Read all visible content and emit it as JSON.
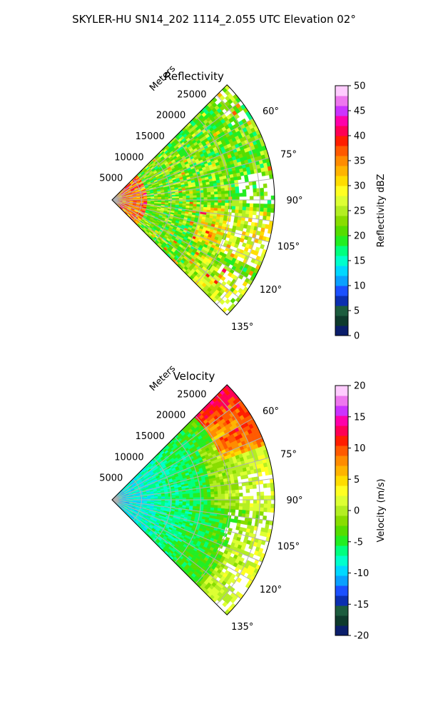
{
  "figure": {
    "title": "SKYLER-HU  SN14_202  1114_2.055 UTC Elevation 02°"
  },
  "chart_data": [
    {
      "type": "heatmap",
      "subtype": "polar-sector",
      "title": "Reflectivity",
      "range_axis_label": "Meters",
      "range_ticks": [
        5000,
        10000,
        15000,
        20000,
        25000
      ],
      "range_tick_labels": [
        "5000",
        "10000",
        "15000",
        "20000",
        "25000"
      ],
      "range_max": 27500,
      "azimuth_range_deg": [
        45,
        135
      ],
      "azimuth_ticks": [
        60,
        75,
        90,
        105,
        120,
        135
      ],
      "azimuth_tick_labels": [
        "60°",
        "75°",
        "90°",
        "105°",
        "120°",
        "135°"
      ],
      "grid": true,
      "colorbar": {
        "label": "Reflectivity dBZ",
        "range": [
          0,
          50
        ],
        "ticks": [
          "0",
          "5",
          "10",
          "15",
          "20",
          "25",
          "30",
          "35",
          "40",
          "45",
          "50"
        ],
        "colors": [
          "#0b1e6b",
          "#0e3a2c",
          "#1c5c3e",
          "#0b2fb0",
          "#1b50ff",
          "#0aa0ff",
          "#00d8ff",
          "#00ffcc",
          "#00ff7f",
          "#22ee22",
          "#55dd00",
          "#88dd00",
          "#b3ee22",
          "#ddff33",
          "#ffff22",
          "#ffdd00",
          "#ffb400",
          "#ff8c00",
          "#ff5a00",
          "#ff1e00",
          "#ff0055",
          "#ff00aa",
          "#cc33ff",
          "#ee77ee",
          "#ffccff"
        ]
      },
      "data_description": "Mostly 18–28 dBZ with higher (30–40 dBZ) values near the radar and scattered streaks; gaps beyond ~15 km near 85–110°."
    },
    {
      "type": "heatmap",
      "subtype": "polar-sector",
      "title": "Velocity",
      "range_axis_label": "Meters",
      "range_ticks": [
        5000,
        10000,
        15000,
        20000,
        25000
      ],
      "range_tick_labels": [
        "5000",
        "10000",
        "15000",
        "20000",
        "25000"
      ],
      "range_max": 27500,
      "azimuth_range_deg": [
        45,
        135
      ],
      "azimuth_ticks": [
        60,
        75,
        90,
        105,
        120,
        135
      ],
      "azimuth_tick_labels": [
        "60°",
        "75°",
        "90°",
        "105°",
        "120°",
        "135°"
      ],
      "grid": true,
      "colorbar": {
        "label": "Velocity (m/s)",
        "range": [
          -20,
          20
        ],
        "ticks": [
          "-20",
          "-15",
          "-10",
          "-5",
          "0",
          "5",
          "10",
          "15",
          "20"
        ],
        "colors": [
          "#0b1e6b",
          "#0e3a2c",
          "#1c5c3e",
          "#0b2fb0",
          "#1b50ff",
          "#0aa0ff",
          "#00d8ff",
          "#00ffcc",
          "#00ff7f",
          "#22ee22",
          "#55dd00",
          "#88dd00",
          "#b3ee22",
          "#ddff33",
          "#ffff22",
          "#ffdd00",
          "#ffb400",
          "#ff8c00",
          "#ff5a00",
          "#ff1e00",
          "#ff0055",
          "#ff00aa",
          "#cc33ff",
          "#ee77ee",
          "#ffccff"
        ]
      },
      "data_description": "Near radar about -10 to -8 m/s, increasing outward to -5..0 m/s; +3 to +10 m/s at far range near 55–65°."
    }
  ]
}
